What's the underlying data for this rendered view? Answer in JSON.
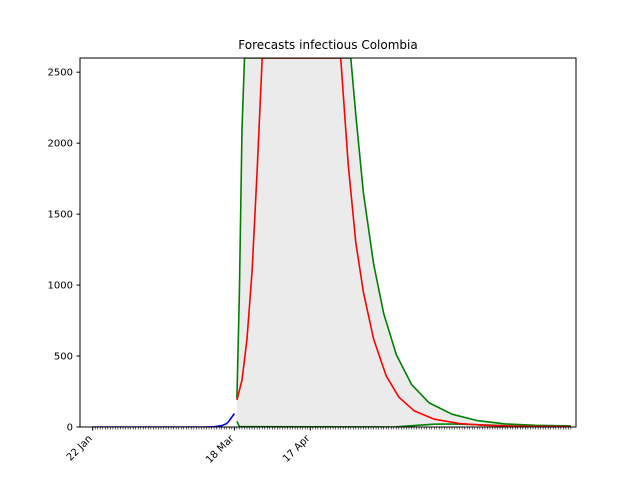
{
  "chart_data": {
    "type": "line",
    "title": "Forecasts infectious Colombia",
    "xlabel": "",
    "ylabel": "",
    "x_unit": "day",
    "xlim": [
      "2020-01-17",
      "2020-07-31"
    ],
    "ylim": [
      0,
      2600
    ],
    "xticks": [
      {
        "date": "2020-01-22",
        "label": "22 Jan"
      },
      {
        "date": "2020-03-18",
        "label": "18 Mar"
      },
      {
        "date": "2020-04-17",
        "label": "17 Apr"
      }
    ],
    "yticks": [
      0,
      500,
      1000,
      1500,
      2000,
      2500
    ],
    "minor_ticks": {
      "from": "2020-01-22",
      "to": "2020-07-29",
      "every_days": 1
    },
    "grid": false,
    "legend": "none",
    "colors": {
      "observed": "#0000ff",
      "median": "#ff0000",
      "bounds": "#008000",
      "band": "#ebebeb"
    },
    "series": [
      {
        "role": "observed",
        "color": "#0000ff",
        "points": [
          [
            "2020-01-22",
            0
          ],
          [
            "2020-02-15",
            0
          ],
          [
            "2020-03-06",
            0
          ],
          [
            "2020-03-10",
            2
          ],
          [
            "2020-03-13",
            9
          ],
          [
            "2020-03-15",
            25
          ],
          [
            "2020-03-16",
            45
          ],
          [
            "2020-03-17",
            70
          ],
          [
            "2020-03-18",
            95
          ]
        ]
      },
      {
        "role": "median",
        "color": "#ff0000",
        "points": [
          [
            "2020-03-19",
            190
          ],
          [
            "2020-03-21",
            330
          ],
          [
            "2020-03-23",
            620
          ],
          [
            "2020-03-25",
            1100
          ],
          [
            "2020-03-27",
            1800
          ],
          [
            "2020-03-29",
            2600
          ],
          [
            "2020-04-29",
            2600
          ],
          [
            "2020-05-02",
            1850
          ],
          [
            "2020-05-05",
            1300
          ],
          [
            "2020-05-08",
            950
          ],
          [
            "2020-05-12",
            620
          ],
          [
            "2020-05-17",
            360
          ],
          [
            "2020-05-22",
            210
          ],
          [
            "2020-05-28",
            115
          ],
          [
            "2020-06-05",
            55
          ],
          [
            "2020-06-15",
            25
          ],
          [
            "2020-06-25",
            12
          ],
          [
            "2020-07-05",
            7
          ],
          [
            "2020-07-15",
            4
          ],
          [
            "2020-07-29",
            2
          ]
        ]
      },
      {
        "role": "upper",
        "color": "#008000",
        "points": [
          [
            "2020-03-19",
            200
          ],
          [
            "2020-03-20",
            950
          ],
          [
            "2020-03-21",
            2100
          ],
          [
            "2020-03-22",
            2600
          ],
          [
            "2020-05-03",
            2600
          ],
          [
            "2020-05-05",
            2200
          ],
          [
            "2020-05-08",
            1650
          ],
          [
            "2020-05-12",
            1150
          ],
          [
            "2020-05-16",
            800
          ],
          [
            "2020-05-21",
            510
          ],
          [
            "2020-05-27",
            300
          ],
          [
            "2020-06-03",
            170
          ],
          [
            "2020-06-12",
            90
          ],
          [
            "2020-06-22",
            45
          ],
          [
            "2020-07-03",
            22
          ],
          [
            "2020-07-15",
            12
          ],
          [
            "2020-07-29",
            8
          ]
        ]
      },
      {
        "role": "lower",
        "color": "#008000",
        "points": [
          [
            "2020-03-19",
            40
          ],
          [
            "2020-03-20",
            2
          ],
          [
            "2020-05-20",
            0
          ],
          [
            "2020-05-28",
            10
          ],
          [
            "2020-06-05",
            20
          ],
          [
            "2020-06-12",
            21
          ],
          [
            "2020-06-20",
            17
          ],
          [
            "2020-07-05",
            8
          ],
          [
            "2020-07-29",
            3
          ]
        ]
      }
    ]
  }
}
